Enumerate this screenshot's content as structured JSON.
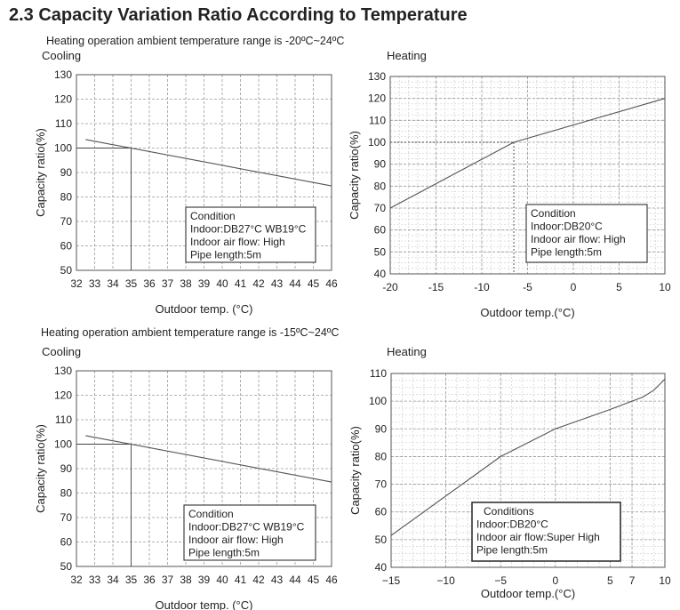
{
  "page_title": "2.3 Capacity Variation Ratio According to Temperature",
  "sections": [
    {
      "subtitle": "Heating operation ambient temperature range is -20ºC~24ºC"
    },
    {
      "subtitle": "Heating operation ambient temperature range is -15ºC~24ºC"
    }
  ],
  "chart_data": [
    {
      "type": "line",
      "panel_label": "Cooling",
      "xlabel": "Outdoor temp. (°C)",
      "ylabel": "Capacity ratio(%)",
      "xlim": [
        32,
        46
      ],
      "ylim": [
        50,
        130
      ],
      "xticks": [
        32,
        33,
        34,
        35,
        36,
        37,
        38,
        39,
        40,
        41,
        42,
        43,
        44,
        45,
        46
      ],
      "yticks": [
        50,
        60,
        70,
        80,
        90,
        100,
        110,
        120,
        130
      ],
      "grid": true,
      "series": [
        {
          "x": [
            32.5,
            46
          ],
          "y": [
            103.5,
            84.5
          ]
        }
      ],
      "reference": {
        "x": 35,
        "y": 100
      },
      "legend_box": {
        "position": "bottom-right",
        "lines": [
          "Condition",
          "Indoor:DB27°C WB19°C",
          "Indoor air flow: High",
          "Pipe length:5m"
        ]
      }
    },
    {
      "type": "line",
      "panel_label": "Heating",
      "xlabel": "Outdoor temp.(°C)",
      "ylabel": "Capacity ratio(%)",
      "xlim": [
        -20,
        10
      ],
      "ylim": [
        40,
        130
      ],
      "xticks": [
        -20,
        -15,
        -10,
        -5,
        0,
        5,
        10
      ],
      "yticks": [
        40,
        50,
        60,
        70,
        80,
        90,
        100,
        110,
        120,
        130
      ],
      "grid": true,
      "series": [
        {
          "x": [
            -20,
            -6.5,
            10
          ],
          "y": [
            70,
            100,
            120
          ]
        }
      ],
      "reference": {
        "x": -6.5,
        "y": 100
      },
      "legend_box": {
        "position": "bottom-right",
        "lines": [
          "Condition",
          "Indoor:DB20°C",
          "Indoor air flow: High",
          "Pipe length:5m"
        ]
      }
    },
    {
      "type": "line",
      "panel_label": "Cooling",
      "xlabel": "Outdoor temp. (°C)",
      "ylabel": "Capacity ratio(%)",
      "xlim": [
        32,
        46
      ],
      "ylim": [
        50,
        130
      ],
      "xticks": [
        32,
        33,
        34,
        35,
        36,
        37,
        38,
        39,
        40,
        41,
        42,
        43,
        44,
        45,
        46
      ],
      "yticks": [
        50,
        60,
        70,
        80,
        90,
        100,
        110,
        120,
        130
      ],
      "grid": true,
      "series": [
        {
          "x": [
            32.5,
            46
          ],
          "y": [
            103.5,
            84.5
          ]
        }
      ],
      "reference": {
        "x": 35,
        "y": 100
      },
      "legend_box": {
        "position": "bottom-right",
        "lines": [
          "Condition",
          "Indoor:DB27°C WB19°C",
          "Indoor air flow: High",
          "Pipe length:5m"
        ]
      }
    },
    {
      "type": "line",
      "panel_label": "Heating",
      "xlabel": "Outdoor temp.(°C)",
      "ylabel": "Capacity ratio(%)",
      "xlim": [
        -15,
        10
      ],
      "ylim": [
        40,
        110
      ],
      "xticks": [
        -15,
        -10,
        -5,
        0,
        5,
        7,
        10
      ],
      "yticks": [
        40,
        50,
        60,
        70,
        80,
        90,
        100,
        110
      ],
      "grid": true,
      "series": [
        {
          "x": [
            -15,
            -5,
            0,
            5,
            7,
            8,
            9,
            10
          ],
          "y": [
            51.5,
            80,
            90,
            97,
            100,
            101.5,
            104,
            108
          ]
        }
      ],
      "legend_box": {
        "position": "bottom-right",
        "lines": [
          "Conditions",
          "Indoor:DB20°C",
          "Indoor air flow:Super High",
          "Pipe length:5m"
        ]
      }
    }
  ]
}
